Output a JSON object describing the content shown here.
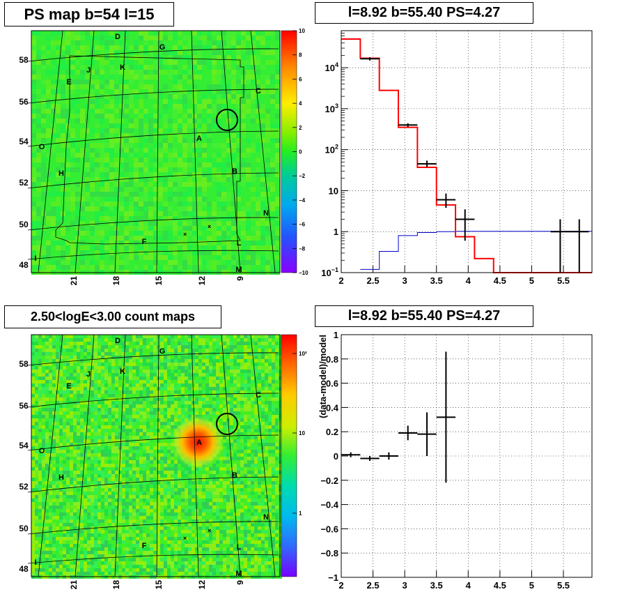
{
  "panels": {
    "top_left_title": "PS map b=54 l=15",
    "top_right_title": "l=8.92 b=55.40 PS=4.27",
    "bottom_left_title": "2.50<logE<3.00 count maps",
    "bottom_right_title": "l=8.92 b=55.40 PS=4.27"
  },
  "colors": {
    "map_green": "#33ee33",
    "model_line": "#ff0000",
    "background_line": "#0000cc",
    "data_points": "#000000",
    "source_circle": "#000000"
  },
  "chart_data": [
    {
      "id": "ps-map",
      "type": "heatmap",
      "title": "PS map b=54 l=15",
      "y_ticks": [
        "58",
        "56",
        "54",
        "52",
        "50",
        "48"
      ],
      "x_ticks": [
        "21",
        "18",
        "15",
        "12",
        "9"
      ],
      "colorbar": {
        "ticks": [
          "10",
          "8",
          "6",
          "4",
          "2",
          "0",
          "−2",
          "−4",
          "−6",
          "−8",
          "−10"
        ],
        "range": [
          -10,
          10
        ]
      },
      "region_labels": [
        "D",
        "G",
        "J",
        "K",
        "E",
        "C",
        "A",
        "O",
        "H",
        "B",
        "N",
        "F",
        "L",
        "I",
        "M"
      ],
      "source_marker": {
        "l": 8.92,
        "b": 55.4
      }
    },
    {
      "id": "count-map",
      "type": "heatmap",
      "title": "2.50<logE<3.00 count maps",
      "y_ticks": [
        "58",
        "56",
        "54",
        "52",
        "50",
        "48"
      ],
      "x_ticks": [
        "21",
        "18",
        "15",
        "12",
        "9"
      ],
      "colorbar": {
        "ticks": [
          "10²",
          "10",
          "1"
        ],
        "log": true
      },
      "region_labels": [
        "D",
        "G",
        "J",
        "K",
        "E",
        "C",
        "A",
        "O",
        "H",
        "B",
        "N",
        "F",
        "L",
        "I",
        "M"
      ],
      "source_marker": {
        "l": 8.92,
        "b": 55.4
      }
    },
    {
      "id": "spectrum",
      "type": "line",
      "title": "l=8.92 b=55.40 PS=4.27",
      "xlim": [
        2,
        5.95
      ],
      "ylim": [
        0.1,
        80000
      ],
      "yscale": "log",
      "grid": true,
      "x_ticks": [
        "2",
        "2.5",
        "3",
        "3.5",
        "4",
        "4.5",
        "5",
        "5.5"
      ],
      "y_ticks": [
        {
          "value": 10000,
          "base": "10",
          "exp": "4"
        },
        {
          "value": 1000,
          "base": "10",
          "exp": "3"
        },
        {
          "value": 100,
          "base": "10",
          "exp": "2"
        },
        {
          "value": 10,
          "base": "10",
          "exp": ""
        },
        {
          "value": 1,
          "base": "1",
          "exp": ""
        },
        {
          "value": 0.1,
          "base": "10",
          "exp": "−1"
        }
      ],
      "model": {
        "edges": [
          2.0,
          2.3,
          2.6,
          2.9,
          3.2,
          3.5,
          3.8,
          4.1,
          4.4,
          5.95
        ],
        "values": [
          50000,
          17000,
          2800,
          350,
          37,
          4.5,
          0.75,
          0.22,
          0.1
        ]
      },
      "background": {
        "edges": [
          2.3,
          2.6,
          2.9,
          3.2,
          3.5,
          3.8,
          5.95
        ],
        "values": [
          0.12,
          0.33,
          0.8,
          0.95,
          1.0,
          1.02
        ]
      },
      "data": [
        {
          "x": 2.45,
          "y": 16500,
          "xerr": 0.15,
          "ylo": 15000,
          "yhi": 18000
        },
        {
          "x": 3.05,
          "y": 400,
          "xerr": 0.15,
          "ylo": 360,
          "yhi": 440
        },
        {
          "x": 3.35,
          "y": 45,
          "xerr": 0.15,
          "ylo": 38,
          "yhi": 54
        },
        {
          "x": 3.65,
          "y": 6,
          "xerr": 0.15,
          "ylo": 3.8,
          "yhi": 8.5
        },
        {
          "x": 3.95,
          "y": 2,
          "xerr": 0.15,
          "ylo": 0.6,
          "yhi": 3.5
        },
        {
          "x": 5.45,
          "y": 1,
          "xerr": 0.15,
          "ylo": 0.1,
          "yhi": 2
        },
        {
          "x": 5.75,
          "y": 1,
          "xerr": 0.15,
          "ylo": 0.1,
          "yhi": 2
        }
      ]
    },
    {
      "id": "residuals",
      "type": "scatter",
      "title": "l=8.92 b=55.40 PS=4.27",
      "ylabel": "(data-model)/model",
      "xlim": [
        2,
        5.95
      ],
      "ylim": [
        -1,
        1
      ],
      "grid": true,
      "x_ticks": [
        "2",
        "2.5",
        "3",
        "3.5",
        "4",
        "4.5",
        "5",
        "5.5"
      ],
      "y_ticks": [
        "1",
        "0.8",
        "0.6",
        "0.4",
        "0.2",
        "0",
        "−0.2",
        "−0.4",
        "−0.6",
        "−0.8",
        "−1"
      ],
      "data": [
        {
          "x": 2.15,
          "y": 0.01,
          "xerr": 0.15,
          "ylo": -0.01,
          "yhi": 0.03
        },
        {
          "x": 2.45,
          "y": -0.02,
          "xerr": 0.15,
          "ylo": -0.04,
          "yhi": 0.0
        },
        {
          "x": 2.75,
          "y": 0.0,
          "xerr": 0.15,
          "ylo": -0.03,
          "yhi": 0.03
        },
        {
          "x": 3.05,
          "y": 0.19,
          "xerr": 0.15,
          "ylo": 0.13,
          "yhi": 0.25
        },
        {
          "x": 3.35,
          "y": 0.18,
          "xerr": 0.15,
          "ylo": 0.0,
          "yhi": 0.36
        },
        {
          "x": 3.65,
          "y": 0.32,
          "xerr": 0.15,
          "ylo": -0.22,
          "yhi": 0.86
        }
      ]
    }
  ]
}
